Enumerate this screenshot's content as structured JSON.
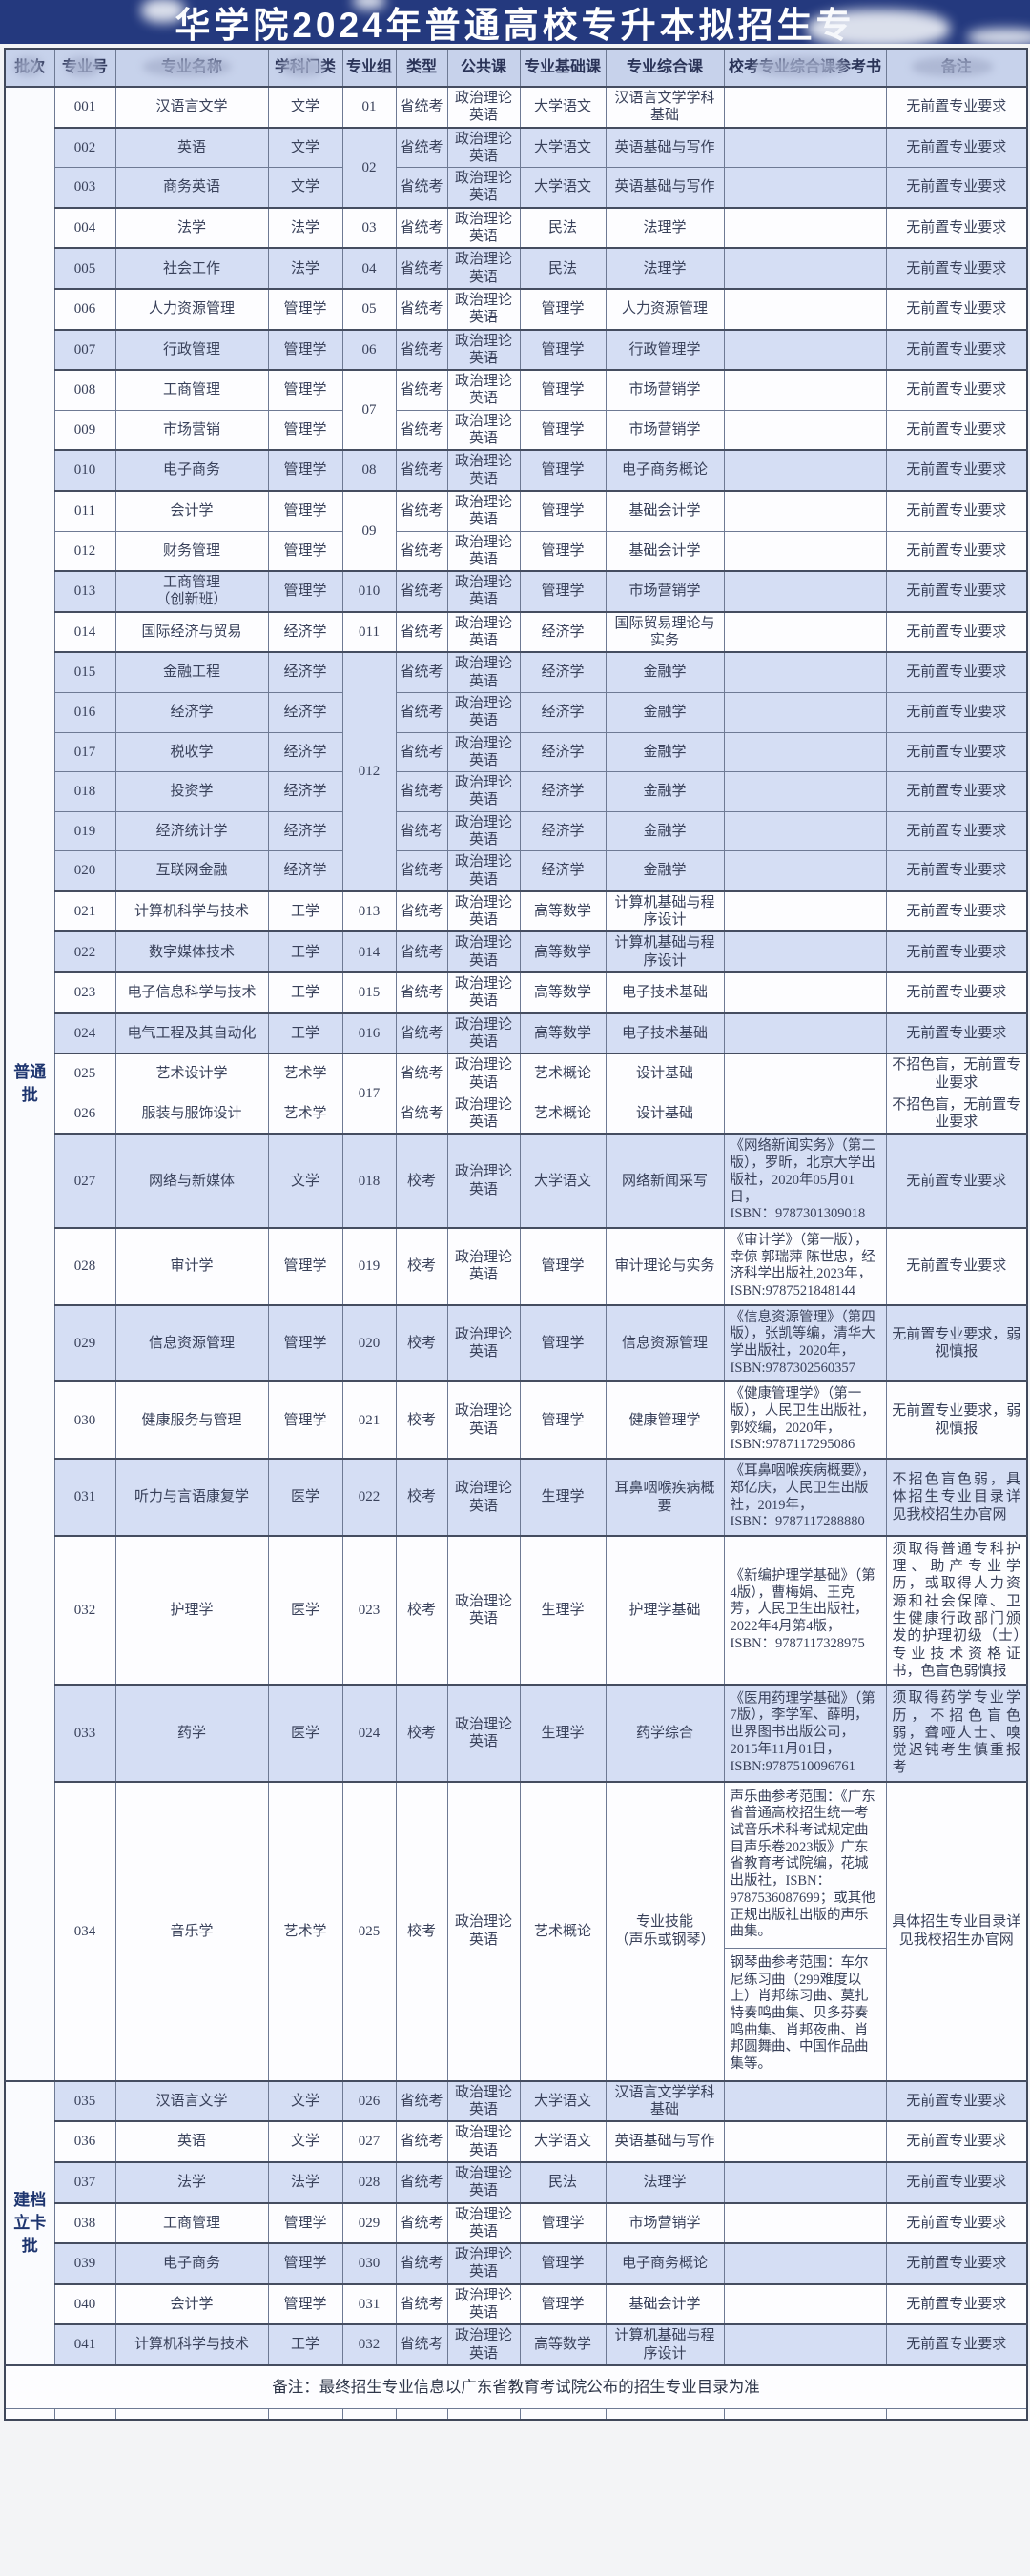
{
  "title": "华学院2024年普通高校专升本拟招生专",
  "footer_note": "备注：最终招生专业信息以广东省教育考试院公布的招生专业目录为准",
  "table": {
    "columns": [
      "批次",
      "专业号",
      "专业名称",
      "学科门类",
      "专业组",
      "类型",
      "公共课",
      "专业基础课",
      "专业综合课",
      "校考专业综合课参考书",
      "备注"
    ],
    "batches": [
      {
        "label": "普通批",
        "rows": [
          {
            "no": "001",
            "major": "汉语言文学",
            "category": "文学",
            "group": "01",
            "type": "省统考",
            "public": "政治理论\n英语",
            "basic": "大学语文",
            "comp": "汉语言文学学科\n基础",
            "ref": "",
            "remark": "无前置专业要求"
          },
          {
            "no": "002",
            "major": "英语",
            "category": "文学",
            "group": "02",
            "type": "省统考",
            "public": "政治理论\n英语",
            "basic": "大学语文",
            "comp": "英语基础与写作",
            "ref": "",
            "remark": "无前置专业要求"
          },
          {
            "no": "003",
            "major": "商务英语",
            "category": "文学",
            "group": "02",
            "type": "省统考",
            "public": "政治理论\n英语",
            "basic": "大学语文",
            "comp": "英语基础与写作",
            "ref": "",
            "remark": "无前置专业要求"
          },
          {
            "no": "004",
            "major": "法学",
            "category": "法学",
            "group": "03",
            "type": "省统考",
            "public": "政治理论\n英语",
            "basic": "民法",
            "comp": "法理学",
            "ref": "",
            "remark": "无前置专业要求"
          },
          {
            "no": "005",
            "major": "社会工作",
            "category": "法学",
            "group": "04",
            "type": "省统考",
            "public": "政治理论\n英语",
            "basic": "民法",
            "comp": "法理学",
            "ref": "",
            "remark": "无前置专业要求"
          },
          {
            "no": "006",
            "major": "人力资源管理",
            "category": "管理学",
            "group": "05",
            "type": "省统考",
            "public": "政治理论\n英语",
            "basic": "管理学",
            "comp": "人力资源管理",
            "ref": "",
            "remark": "无前置专业要求"
          },
          {
            "no": "007",
            "major": "行政管理",
            "category": "管理学",
            "group": "06",
            "type": "省统考",
            "public": "政治理论\n英语",
            "basic": "管理学",
            "comp": "行政管理学",
            "ref": "",
            "remark": "无前置专业要求"
          },
          {
            "no": "008",
            "major": "工商管理",
            "category": "管理学",
            "group": "07",
            "type": "省统考",
            "public": "政治理论\n英语",
            "basic": "管理学",
            "comp": "市场营销学",
            "ref": "",
            "remark": "无前置专业要求"
          },
          {
            "no": "009",
            "major": "市场营销",
            "category": "管理学",
            "group": "07",
            "type": "省统考",
            "public": "政治理论\n英语",
            "basic": "管理学",
            "comp": "市场营销学",
            "ref": "",
            "remark": "无前置专业要求"
          },
          {
            "no": "010",
            "major": "电子商务",
            "category": "管理学",
            "group": "08",
            "type": "省统考",
            "public": "政治理论\n英语",
            "basic": "管理学",
            "comp": "电子商务概论",
            "ref": "",
            "remark": "无前置专业要求"
          },
          {
            "no": "011",
            "major": "会计学",
            "category": "管理学",
            "group": "09",
            "type": "省统考",
            "public": "政治理论\n英语",
            "basic": "管理学",
            "comp": "基础会计学",
            "ref": "",
            "remark": "无前置专业要求"
          },
          {
            "no": "012",
            "major": "财务管理",
            "category": "管理学",
            "group": "09",
            "type": "省统考",
            "public": "政治理论\n英语",
            "basic": "管理学",
            "comp": "基础会计学",
            "ref": "",
            "remark": "无前置专业要求"
          },
          {
            "no": "013",
            "major": "工商管理\n（创新班）",
            "category": "管理学",
            "group": "010",
            "type": "省统考",
            "public": "政治理论\n英语",
            "basic": "管理学",
            "comp": "市场营销学",
            "ref": "",
            "remark": "无前置专业要求"
          },
          {
            "no": "014",
            "major": "国际经济与贸易",
            "category": "经济学",
            "group": "011",
            "type": "省统考",
            "public": "政治理论\n英语",
            "basic": "经济学",
            "comp": "国际贸易理论与\n实务",
            "ref": "",
            "remark": "无前置专业要求"
          },
          {
            "no": "015",
            "major": "金融工程",
            "category": "经济学",
            "group": "012",
            "type": "省统考",
            "public": "政治理论\n英语",
            "basic": "经济学",
            "comp": "金融学",
            "ref": "",
            "remark": "无前置专业要求"
          },
          {
            "no": "016",
            "major": "经济学",
            "category": "经济学",
            "group": "012",
            "type": "省统考",
            "public": "政治理论\n英语",
            "basic": "经济学",
            "comp": "金融学",
            "ref": "",
            "remark": "无前置专业要求"
          },
          {
            "no": "017",
            "major": "税收学",
            "category": "经济学",
            "group": "012",
            "type": "省统考",
            "public": "政治理论\n英语",
            "basic": "经济学",
            "comp": "金融学",
            "ref": "",
            "remark": "无前置专业要求"
          },
          {
            "no": "018",
            "major": "投资学",
            "category": "经济学",
            "group": "012",
            "type": "省统考",
            "public": "政治理论\n英语",
            "basic": "经济学",
            "comp": "金融学",
            "ref": "",
            "remark": "无前置专业要求"
          },
          {
            "no": "019",
            "major": "经济统计学",
            "category": "经济学",
            "group": "012",
            "type": "省统考",
            "public": "政治理论\n英语",
            "basic": "经济学",
            "comp": "金融学",
            "ref": "",
            "remark": "无前置专业要求"
          },
          {
            "no": "020",
            "major": "互联网金融",
            "category": "经济学",
            "group": "012",
            "type": "省统考",
            "public": "政治理论\n英语",
            "basic": "经济学",
            "comp": "金融学",
            "ref": "",
            "remark": "无前置专业要求"
          },
          {
            "no": "021",
            "major": "计算机科学与技术",
            "category": "工学",
            "group": "013",
            "type": "省统考",
            "public": "政治理论\n英语",
            "basic": "高等数学",
            "comp": "计算机基础与程\n序设计",
            "ref": "",
            "remark": "无前置专业要求"
          },
          {
            "no": "022",
            "major": "数字媒体技术",
            "category": "工学",
            "group": "014",
            "type": "省统考",
            "public": "政治理论\n英语",
            "basic": "高等数学",
            "comp": "计算机基础与程\n序设计",
            "ref": "",
            "remark": "无前置专业要求"
          },
          {
            "no": "023",
            "major": "电子信息科学与技术",
            "category": "工学",
            "group": "015",
            "type": "省统考",
            "public": "政治理论\n英语",
            "basic": "高等数学",
            "comp": "电子技术基础",
            "ref": "",
            "remark": "无前置专业要求"
          },
          {
            "no": "024",
            "major": "电气工程及其自动化",
            "category": "工学",
            "group": "016",
            "type": "省统考",
            "public": "政治理论\n英语",
            "basic": "高等数学",
            "comp": "电子技术基础",
            "ref": "",
            "remark": "无前置专业要求"
          },
          {
            "no": "025",
            "major": "艺术设计学",
            "category": "艺术学",
            "group": "017",
            "type": "省统考",
            "public": "政治理论\n英语",
            "basic": "艺术概论",
            "comp": "设计基础",
            "ref": "",
            "remark": "不招色盲，无前置专\n业要求"
          },
          {
            "no": "026",
            "major": "服装与服饰设计",
            "category": "艺术学",
            "group": "017",
            "type": "省统考",
            "public": "政治理论\n英语",
            "basic": "艺术概论",
            "comp": "设计基础",
            "ref": "",
            "remark": "不招色盲，无前置专\n业要求"
          },
          {
            "no": "027",
            "major": "网络与新媒体",
            "category": "文学",
            "group": "018",
            "type": "校考",
            "public": "政治理论\n英语",
            "basic": "大学语文",
            "comp": "网络新闻采写",
            "ref": "《网络新闻实务》（第二版），罗昕，北京大学出版社，2020年05月01日，\nISBN：9787301309018",
            "remark": "无前置专业要求"
          },
          {
            "no": "028",
            "major": "审计学",
            "category": "管理学",
            "group": "019",
            "type": "校考",
            "public": "政治理论\n英语",
            "basic": "管理学",
            "comp": "审计理论与实务",
            "ref": "《审计学》（第一版），幸倞 郭瑞萍 陈世忠，经济科学出版社,2023年，\nISBN:9787521848144",
            "remark": "无前置专业要求"
          },
          {
            "no": "029",
            "major": "信息资源管理",
            "category": "管理学",
            "group": "020",
            "type": "校考",
            "public": "政治理论\n英语",
            "basic": "管理学",
            "comp": "信息资源管理",
            "ref": "《信息资源管理》（第四版），张凯等编，清华大学出版社，2020年，\nISBN:9787302560357",
            "remark": "无前置专业要求，弱\n视慎报"
          },
          {
            "no": "030",
            "major": "健康服务与管理",
            "category": "管理学",
            "group": "021",
            "type": "校考",
            "public": "政治理论\n英语",
            "basic": "管理学",
            "comp": "健康管理学",
            "ref": "《健康管理学》（第一版），人民卫生出版社，郭姣编，2020年，\nISBN:9787117295086",
            "remark": "无前置专业要求，弱\n视慎报"
          },
          {
            "no": "031",
            "major": "听力与言语康复学",
            "category": "医学",
            "group": "022",
            "type": "校考",
            "public": "政治理论\n英语",
            "basic": "生理学",
            "comp": "耳鼻咽喉疾病概\n要",
            "ref": "《耳鼻咽喉疾病概要》，郑亿庆，人民卫生出版社，2019年，\nISBN：9787117288880",
            "remark": "不招色盲色弱，具体招生专业目录详见我校招生办官网"
          },
          {
            "no": "032",
            "major": "护理学",
            "category": "医学",
            "group": "023",
            "type": "校考",
            "public": "政治理论\n英语",
            "basic": "生理学",
            "comp": "护理学基础",
            "ref": "《新编护理学基础》（第4版），曹梅娟、王克芳，人民卫生出版社，2022年4月第4版，\nISBN：9787117328975",
            "remark": "须取得普通专科护理、助产专业学历，或取得人力资源和社会保障、卫生健康行政部门颁发的护理初级（士）专业技术资格证书，色盲色弱慎报"
          },
          {
            "no": "033",
            "major": "药学",
            "category": "医学",
            "group": "024",
            "type": "校考",
            "public": "政治理论\n英语",
            "basic": "生理学",
            "comp": "药学综合",
            "ref": "《医用药理学基础》（第7版），李学军、薛明，世界图书出版公司， 2015年11月01日，\nISBN:9787510096761",
            "remark": "须取得药学专业学历，不招色盲色弱，聋哑人士、嗅觉迟钝考生慎重报考"
          },
          {
            "no": "034",
            "major": "音乐学",
            "category": "艺术学",
            "group": "025",
            "type": "校考",
            "public": "政治理论\n英语",
            "basic": "艺术概论",
            "comp": "专业技能\n（声乐或钢琴）",
            "ref": [
              "声乐曲参考范围：《广东省普通高校招生统一考试音乐术科考试规定曲目声乐卷2023版》广东省教育考试院编，花城出版社，ISBN：9787536087699；或其他正规出版社出版的声乐曲集。",
              "钢琴曲参考范围：车尔尼练习曲（299难度以上）肖邦练习曲、莫扎特奏鸣曲集、贝多芬奏鸣曲集、肖邦夜曲、肖邦圆舞曲、中国作品曲集等。"
            ],
            "remark": "具体招生专业目录详见我校招生办官网"
          }
        ]
      },
      {
        "label": "建档立卡批",
        "rows": [
          {
            "no": "035",
            "major": "汉语言文学",
            "category": "文学",
            "group": "026",
            "type": "省统考",
            "public": "政治理论\n英语",
            "basic": "大学语文",
            "comp": "汉语言文学学科\n基础",
            "ref": "",
            "remark": "无前置专业要求"
          },
          {
            "no": "036",
            "major": "英语",
            "category": "文学",
            "group": "027",
            "type": "省统考",
            "public": "政治理论\n英语",
            "basic": "大学语文",
            "comp": "英语基础与写作",
            "ref": "",
            "remark": "无前置专业要求"
          },
          {
            "no": "037",
            "major": "法学",
            "category": "法学",
            "group": "028",
            "type": "省统考",
            "public": "政治理论\n英语",
            "basic": "民法",
            "comp": "法理学",
            "ref": "",
            "remark": "无前置专业要求"
          },
          {
            "no": "038",
            "major": "工商管理",
            "category": "管理学",
            "group": "029",
            "type": "省统考",
            "public": "政治理论\n英语",
            "basic": "管理学",
            "comp": "市场营销学",
            "ref": "",
            "remark": "无前置专业要求"
          },
          {
            "no": "039",
            "major": "电子商务",
            "category": "管理学",
            "group": "030",
            "type": "省统考",
            "public": "政治理论\n英语",
            "basic": "管理学",
            "comp": "电子商务概论",
            "ref": "",
            "remark": "无前置专业要求"
          },
          {
            "no": "040",
            "major": "会计学",
            "category": "管理学",
            "group": "031",
            "type": "省统考",
            "public": "政治理论\n英语",
            "basic": "管理学",
            "comp": "基础会计学",
            "ref": "",
            "remark": "无前置专业要求"
          },
          {
            "no": "041",
            "major": "计算机科学与技术",
            "category": "工学",
            "group": "032",
            "type": "省统考",
            "public": "政治理论\n英语",
            "basic": "高等数学",
            "comp": "计算机基础与程\n序设计",
            "ref": "",
            "remark": "无前置专业要求"
          }
        ]
      }
    ]
  }
}
